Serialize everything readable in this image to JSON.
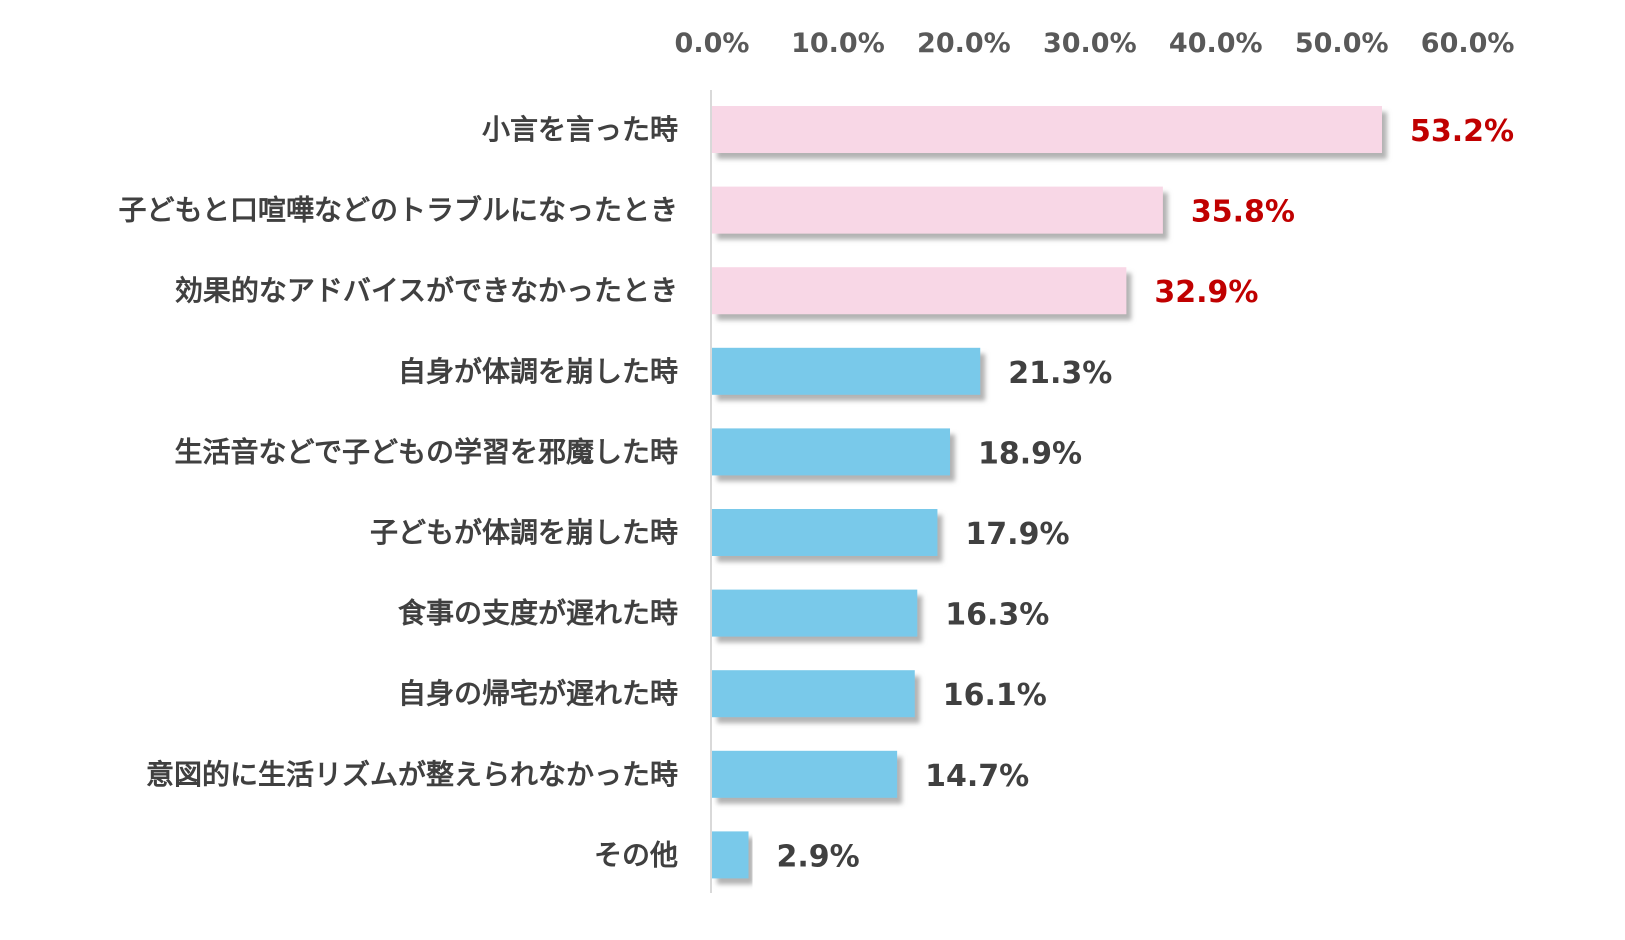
{
  "chart_data": {
    "type": "bar",
    "orientation": "horizontal",
    "categories": [
      "小言を言った時",
      "子どもと口喧嘩などのトラブルになったとき",
      "効果的なアドバイスができなかったとき",
      "自身が体調を崩した時",
      "生活音などで子どもの学習を邪魔した時",
      "子どもが体調を崩した時",
      "食事の支度が遅れた時",
      "自身の帰宅が遅れた時",
      "意図的に生活リズムが整えられなかった時",
      "その他"
    ],
    "values": [
      53.2,
      35.8,
      32.9,
      21.3,
      18.9,
      17.9,
      16.3,
      16.1,
      14.7,
      2.9
    ],
    "value_labels": [
      "53.2%",
      "35.8%",
      "32.9%",
      "21.3%",
      "18.9%",
      "17.9%",
      "16.3%",
      "16.1%",
      "14.7%",
      "2.9%"
    ],
    "highlighted": [
      true,
      true,
      true,
      false,
      false,
      false,
      false,
      false,
      false,
      false
    ],
    "x_ticks": [
      "0.0%",
      "10.0%",
      "20.0%",
      "30.0%",
      "40.0%",
      "50.0%",
      "60.0%"
    ],
    "xlim": [
      0,
      60
    ],
    "x_axis_position": "top",
    "grid": false,
    "legend": "none",
    "colors": {
      "highlight_bar": "#F8D7E6",
      "normal_bar": "#79C9EA",
      "highlight_label": "#C00000",
      "normal_label": "#404040",
      "tick_label": "#595959",
      "category_label": "#404040",
      "axis_line": "#D9D9D9",
      "bar_shadow": "#B3B3B3"
    }
  }
}
